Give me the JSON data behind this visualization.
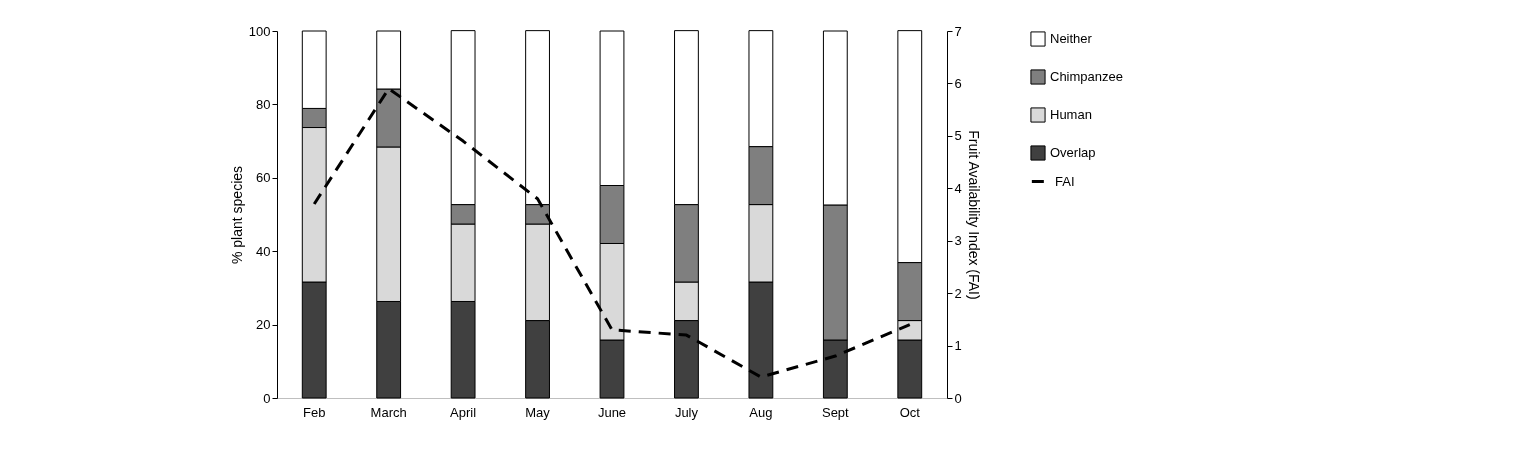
{
  "chart_data": {
    "type": "bar",
    "stacked": true,
    "ylabel": "% plant species",
    "y2label": "Fruit Availability Index (FAI)",
    "categories": [
      "Feb",
      "March",
      "April",
      "May",
      "June",
      "July",
      "Aug",
      "Sept",
      "Oct"
    ],
    "series": [
      {
        "name": "Overlap",
        "color": "#404040",
        "values": [
          31.6,
          26.3,
          26.3,
          21.1,
          15.8,
          21.1,
          31.6,
          15.8,
          15.8
        ]
      },
      {
        "name": "Human",
        "color": "#d9d9d9",
        "values": [
          42.1,
          42.1,
          21.1,
          26.3,
          26.3,
          10.5,
          21.1,
          null,
          5.3
        ]
      },
      {
        "name": "Chimpanzee",
        "color": "#7f7f7f",
        "values": [
          5.2,
          15.8,
          5.3,
          5.3,
          15.8,
          21.1,
          15.8,
          36.8,
          15.8
        ]
      },
      {
        "name": "Neither",
        "color": "#ffffff",
        "values": [
          21.1,
          15.8,
          47.4,
          47.4,
          42.1,
          47.4,
          31.6,
          47.4,
          63.2
        ]
      },
      {
        "name": "FAI",
        "type": "line",
        "axis": "y2",
        "color": "#000000",
        "line_style": "dashed",
        "values": [
          3.7,
          5.9,
          4.9,
          3.8,
          1.3,
          1.2,
          0.4,
          0.8,
          1.4
        ]
      }
    ],
    "ylim": [
      0,
      100
    ],
    "yticks": [
      0,
      20,
      40,
      60,
      80,
      100
    ],
    "y2lim": [
      0,
      7
    ],
    "y2ticks": [
      0,
      1,
      2,
      3,
      4,
      5,
      6,
      7
    ],
    "grid": false,
    "legend": "right"
  }
}
